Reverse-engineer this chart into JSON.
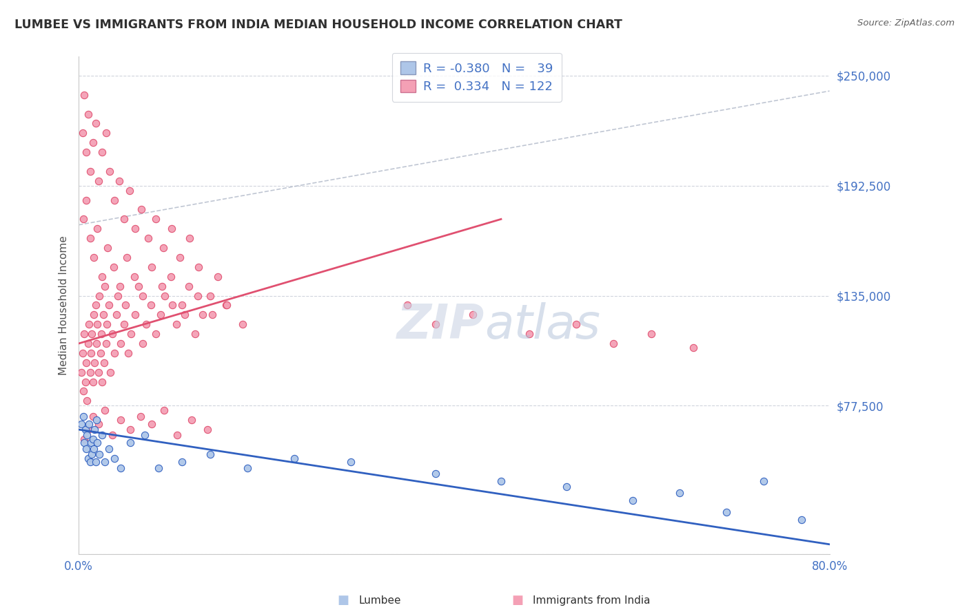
{
  "title": "LUMBEE VS IMMIGRANTS FROM INDIA MEDIAN HOUSEHOLD INCOME CORRELATION CHART",
  "source": "Source: ZipAtlas.com",
  "xlabel_lumbee": "Lumbee",
  "xlabel_india": "Immigrants from India",
  "ylabel": "Median Household Income",
  "xmin": 0.0,
  "xmax": 0.8,
  "ymin": 0,
  "ymax": 260000,
  "yticks": [
    0,
    77500,
    135000,
    192500,
    250000
  ],
  "ytick_labels": [
    "",
    "$77,500",
    "$135,000",
    "$192,500",
    "$250,000"
  ],
  "xticks": [
    0.0,
    0.1,
    0.2,
    0.3,
    0.4,
    0.5,
    0.6,
    0.7,
    0.8
  ],
  "xtick_labels": [
    "0.0%",
    "",
    "",
    "",
    "",
    "",
    "",
    "",
    "80.0%"
  ],
  "blue_color": "#aec6e8",
  "pink_color": "#f4a0b5",
  "blue_line_color": "#3060c0",
  "pink_line_color": "#e05070",
  "legend_blue_color": "#aec6e8",
  "legend_pink_color": "#f4a0b5",
  "R_blue": -0.38,
  "N_blue": 39,
  "R_pink": 0.334,
  "N_pink": 122,
  "title_color": "#404040",
  "watermark": "ZIPatlas",
  "blue_scatter_x": [
    0.003,
    0.005,
    0.006,
    0.007,
    0.008,
    0.009,
    0.01,
    0.011,
    0.012,
    0.013,
    0.014,
    0.015,
    0.016,
    0.017,
    0.018,
    0.019,
    0.02,
    0.022,
    0.025,
    0.028,
    0.032,
    0.038,
    0.045,
    0.055,
    0.07,
    0.085,
    0.11,
    0.14,
    0.18,
    0.23,
    0.29,
    0.38,
    0.45,
    0.52,
    0.59,
    0.64,
    0.69,
    0.73,
    0.77
  ],
  "blue_scatter_y": [
    68000,
    72000,
    58000,
    65000,
    55000,
    62000,
    50000,
    68000,
    48000,
    58000,
    52000,
    60000,
    55000,
    65000,
    48000,
    70000,
    58000,
    52000,
    62000,
    48000,
    55000,
    50000,
    45000,
    58000,
    62000,
    45000,
    48000,
    52000,
    45000,
    50000,
    48000,
    42000,
    38000,
    35000,
    28000,
    32000,
    22000,
    38000,
    18000
  ],
  "pink_scatter_x": [
    0.003,
    0.004,
    0.005,
    0.006,
    0.007,
    0.008,
    0.009,
    0.01,
    0.011,
    0.012,
    0.013,
    0.014,
    0.015,
    0.016,
    0.017,
    0.018,
    0.019,
    0.02,
    0.021,
    0.022,
    0.023,
    0.024,
    0.025,
    0.026,
    0.027,
    0.028,
    0.029,
    0.03,
    0.032,
    0.034,
    0.036,
    0.038,
    0.04,
    0.042,
    0.045,
    0.048,
    0.05,
    0.053,
    0.056,
    0.06,
    0.064,
    0.068,
    0.072,
    0.077,
    0.082,
    0.087,
    0.092,
    0.098,
    0.104,
    0.11,
    0.117,
    0.124,
    0.132,
    0.14,
    0.148,
    0.157,
    0.004,
    0.006,
    0.008,
    0.01,
    0.012,
    0.015,
    0.018,
    0.021,
    0.025,
    0.029,
    0.033,
    0.038,
    0.043,
    0.048,
    0.054,
    0.06,
    0.067,
    0.074,
    0.082,
    0.09,
    0.099,
    0.108,
    0.118,
    0.128,
    0.005,
    0.008,
    0.012,
    0.016,
    0.02,
    0.025,
    0.031,
    0.037,
    0.044,
    0.051,
    0.059,
    0.068,
    0.078,
    0.089,
    0.1,
    0.113,
    0.127,
    0.142,
    0.158,
    0.175,
    0.006,
    0.01,
    0.015,
    0.021,
    0.028,
    0.036,
    0.045,
    0.055,
    0.066,
    0.078,
    0.091,
    0.105,
    0.12,
    0.137,
    0.35,
    0.38,
    0.42,
    0.48,
    0.53,
    0.57,
    0.61,
    0.655
  ],
  "pink_scatter_y": [
    95000,
    105000,
    85000,
    115000,
    90000,
    100000,
    80000,
    110000,
    120000,
    95000,
    105000,
    115000,
    90000,
    125000,
    100000,
    130000,
    110000,
    120000,
    95000,
    135000,
    105000,
    115000,
    90000,
    125000,
    100000,
    140000,
    110000,
    120000,
    130000,
    95000,
    115000,
    105000,
    125000,
    135000,
    110000,
    120000,
    130000,
    105000,
    115000,
    125000,
    140000,
    110000,
    120000,
    130000,
    115000,
    125000,
    135000,
    145000,
    120000,
    130000,
    140000,
    115000,
    125000,
    135000,
    145000,
    130000,
    220000,
    240000,
    210000,
    230000,
    200000,
    215000,
    225000,
    195000,
    210000,
    220000,
    200000,
    185000,
    195000,
    175000,
    190000,
    170000,
    180000,
    165000,
    175000,
    160000,
    170000,
    155000,
    165000,
    150000,
    175000,
    185000,
    165000,
    155000,
    170000,
    145000,
    160000,
    150000,
    140000,
    155000,
    145000,
    135000,
    150000,
    140000,
    130000,
    125000,
    135000,
    125000,
    130000,
    120000,
    60000,
    65000,
    72000,
    68000,
    75000,
    62000,
    70000,
    65000,
    72000,
    68000,
    75000,
    62000,
    70000,
    65000,
    130000,
    120000,
    125000,
    115000,
    120000,
    110000,
    115000,
    108000
  ]
}
